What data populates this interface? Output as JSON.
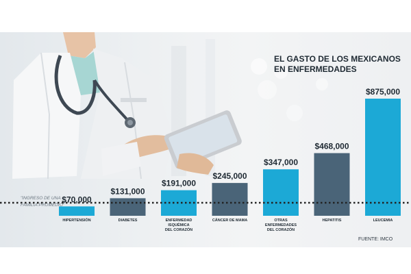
{
  "colors": {
    "bar_light": "#1ca9d6",
    "bar_dark": "#4a6478",
    "text_dark": "#1f2a33",
    "line": "#222222"
  },
  "illustration": "doctor-with-tablet",
  "chart_data": {
    "type": "bar",
    "title": "EL GASTO DE LOS MEXICANOS EN ENFERMEDADES",
    "title_lines": [
      "EL GASTO DE LOS MEXICANOS",
      "EN ENFERMEDADES"
    ],
    "source": "FUENTE: IMCO",
    "unit": "$",
    "grid": false,
    "categories": [
      [
        "HIPERTENSIÓN"
      ],
      [
        "DIABETES"
      ],
      [
        "ENFERMEDAD",
        "ISQUÉMICA",
        "DEL CORAZÓN"
      ],
      [
        "CÁNCER DE MAMA"
      ],
      [
        "OTRAS",
        "ENFERMEDADES",
        "DEL CORAZÓN"
      ],
      [
        "HEPATITIS"
      ],
      [
        "LEUCEMIA"
      ]
    ],
    "values": [
      70000,
      131000,
      191000,
      245000,
      347000,
      468000,
      875000
    ],
    "value_labels": [
      "$70,000",
      "$131,000",
      "$191,000",
      "$245,000",
      "$347,000",
      "$468,000",
      "$875,000"
    ],
    "bar_colors": [
      "light",
      "dark",
      "light",
      "dark",
      "light",
      "dark",
      "light"
    ],
    "reference_line": {
      "label_lines": [
        "\"INGRESO DE UNA",
        "FAMILIA PROMEDIO\""
      ],
      "style": "dotted"
    }
  }
}
